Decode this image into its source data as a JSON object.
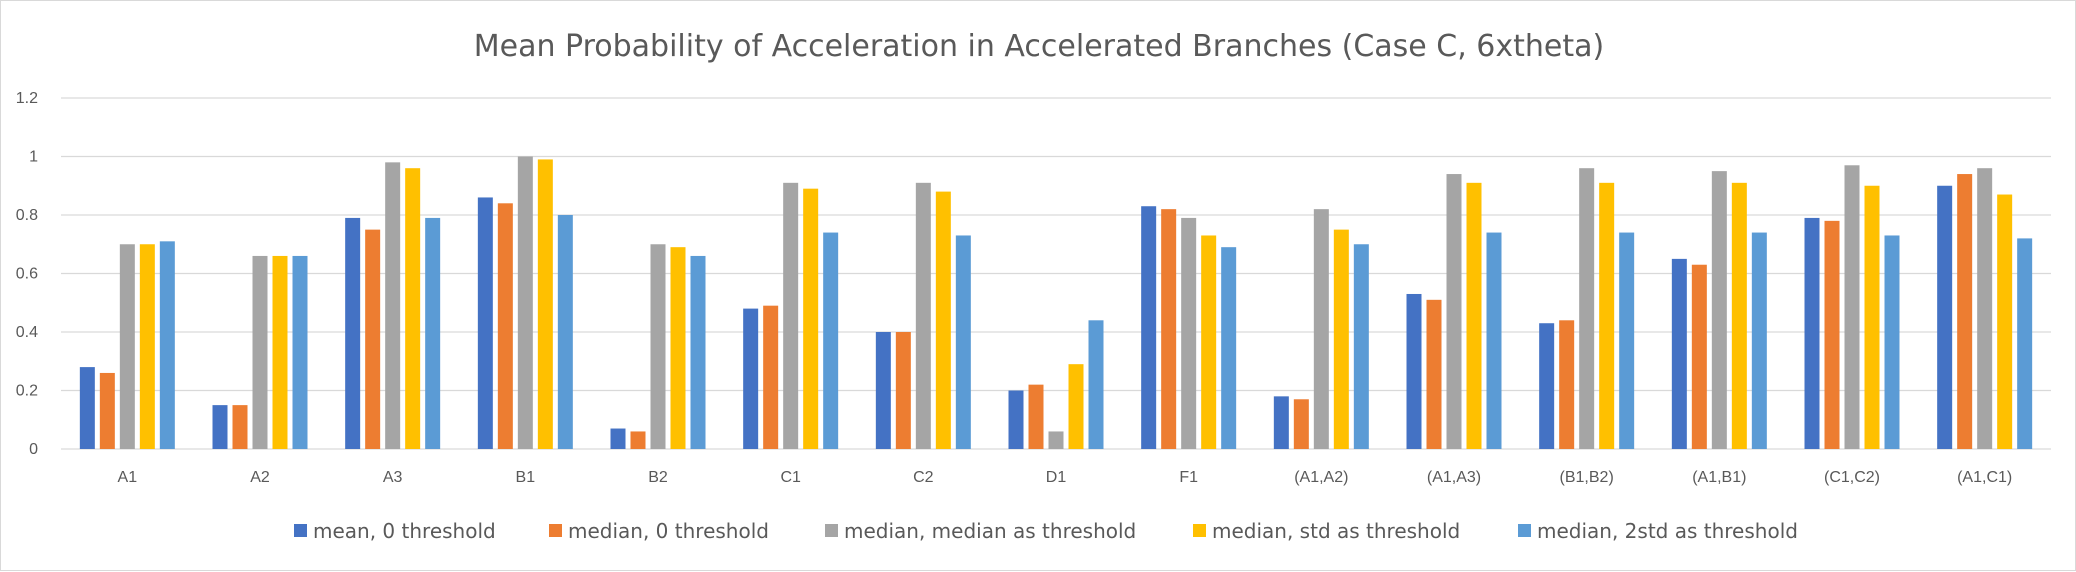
{
  "chart_data": {
    "type": "bar",
    "title": "Mean Probability of Acceleration in Accelerated Branches (Case C, 6xtheta)",
    "xlabel": "",
    "ylabel": "",
    "ylim": [
      0,
      1.2
    ],
    "yticks": [
      "0",
      "0.2",
      "0.4",
      "0.6",
      "0.8",
      "1",
      "1.2"
    ],
    "grid": true,
    "legend_position": "bottom",
    "categories": [
      "A1",
      "A2",
      "A3",
      "B1",
      "B2",
      "C1",
      "C2",
      "D1",
      "F1",
      "(A1,A2)",
      "(A1,A3)",
      "(B1,B2)",
      "(A1,B1)",
      "(C1,C2)",
      "(A1,C1)"
    ],
    "series": [
      {
        "name": "mean, 0 threshold",
        "color": "#4472C4",
        "values": [
          0.28,
          0.15,
          0.79,
          0.86,
          0.07,
          0.48,
          0.4,
          0.2,
          0.83,
          0.18,
          0.53,
          0.43,
          0.65,
          0.79,
          0.9
        ]
      },
      {
        "name": "median, 0 threshold",
        "color": "#ED7D31",
        "values": [
          0.26,
          0.15,
          0.75,
          0.84,
          0.06,
          0.49,
          0.4,
          0.22,
          0.82,
          0.17,
          0.51,
          0.44,
          0.63,
          0.78,
          0.94
        ]
      },
      {
        "name": "median, median as threshold",
        "color": "#A5A5A5",
        "values": [
          0.7,
          0.66,
          0.98,
          1.0,
          0.7,
          0.91,
          0.91,
          0.06,
          0.79,
          0.82,
          0.94,
          0.96,
          0.95,
          0.97,
          0.96
        ]
      },
      {
        "name": "median, std as threshold",
        "color": "#FFC000",
        "values": [
          0.7,
          0.66,
          0.96,
          0.99,
          0.69,
          0.89,
          0.88,
          0.29,
          0.73,
          0.75,
          0.91,
          0.91,
          0.91,
          0.9,
          0.87
        ]
      },
      {
        "name": "median, 2std as threshold",
        "color": "#5B9BD5",
        "values": [
          0.71,
          0.66,
          0.79,
          0.8,
          0.66,
          0.74,
          0.73,
          0.44,
          0.69,
          0.7,
          0.74,
          0.74,
          0.74,
          0.73,
          0.72
        ]
      }
    ]
  }
}
